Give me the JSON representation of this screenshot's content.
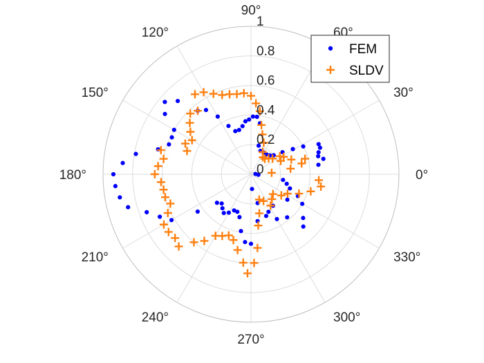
{
  "chart_data": {
    "type": "scatter",
    "subtype": "polar",
    "title": "",
    "rlim": [
      0,
      1
    ],
    "r_ticks": [
      "0",
      "0.2",
      "0.4",
      "0.6",
      "0.8",
      "1"
    ],
    "theta_ticks": [
      "0°",
      "30°",
      "60°",
      "90°",
      "120°",
      "150°",
      "180°",
      "210°",
      "240°",
      "270°",
      "300°",
      "330°"
    ],
    "grid": true,
    "legend_position": "top-right",
    "series": [
      {
        "name": "FEM",
        "marker": "dot",
        "color": "#0000ff",
        "points": [
          {
            "theta": 4,
            "r": 0.03
          },
          {
            "theta": 8,
            "r": 0.46
          },
          {
            "theta": 12,
            "r": 0.5
          },
          {
            "theta": 15,
            "r": 0.47
          },
          {
            "theta": 18,
            "r": 0.48
          },
          {
            "theta": 21,
            "r": 0.5
          },
          {
            "theta": 24,
            "r": 0.5
          },
          {
            "theta": 28,
            "r": 0.4
          },
          {
            "theta": 31,
            "r": 0.33
          },
          {
            "theta": 35,
            "r": 0.26
          },
          {
            "theta": 40,
            "r": 0.2
          },
          {
            "theta": 45,
            "r": 0.18
          },
          {
            "theta": 52,
            "r": 0.17
          },
          {
            "theta": 60,
            "r": 0.17
          },
          {
            "theta": 68,
            "r": 0.17
          },
          {
            "theta": 75,
            "r": 0.2
          },
          {
            "theta": 80,
            "r": 0.35
          },
          {
            "theta": 84,
            "r": 0.39
          },
          {
            "theta": 88,
            "r": 0.39
          },
          {
            "theta": 92,
            "r": 0.37
          },
          {
            "theta": 96,
            "r": 0.36
          },
          {
            "theta": 100,
            "r": 0.33
          },
          {
            "theta": 105,
            "r": 0.31
          },
          {
            "theta": 110,
            "r": 0.31
          },
          {
            "theta": 115,
            "r": 0.36
          },
          {
            "theta": 120,
            "r": 0.45
          },
          {
            "theta": 125,
            "r": 0.53
          },
          {
            "theta": 130,
            "r": 0.56
          },
          {
            "theta": 135,
            "r": 0.7
          },
          {
            "theta": 140,
            "r": 0.76
          },
          {
            "theta": 145,
            "r": 0.71
          },
          {
            "theta": 150,
            "r": 0.6
          },
          {
            "theta": 155,
            "r": 0.59
          },
          {
            "theta": 160,
            "r": 0.59
          },
          {
            "theta": 165,
            "r": 0.65
          },
          {
            "theta": 170,
            "r": 0.79
          },
          {
            "theta": 175,
            "r": 0.87
          },
          {
            "theta": 180,
            "r": 0.93
          },
          {
            "theta": 185,
            "r": 0.92
          },
          {
            "theta": 190,
            "r": 0.9
          },
          {
            "theta": 195,
            "r": 0.86
          },
          {
            "theta": 200,
            "r": 0.75
          },
          {
            "theta": 205,
            "r": 0.68
          },
          {
            "theta": 210,
            "r": 0.62
          },
          {
            "theta": 215,
            "r": 0.44
          },
          {
            "theta": 220,
            "r": 0.3
          },
          {
            "theta": 225,
            "r": 0.28
          },
          {
            "theta": 230,
            "r": 0.3
          },
          {
            "theta": 235,
            "r": 0.32
          },
          {
            "theta": 240,
            "r": 0.3
          },
          {
            "theta": 245,
            "r": 0.27
          },
          {
            "theta": 250,
            "r": 0.27
          },
          {
            "theta": 255,
            "r": 0.3
          },
          {
            "theta": 260,
            "r": 0.39
          },
          {
            "theta": 265,
            "r": 0.46
          },
          {
            "theta": 270,
            "r": 0.47
          },
          {
            "theta": 274,
            "r": 0.1
          },
          {
            "theta": 278,
            "r": 0.32
          },
          {
            "theta": 283,
            "r": 0.2
          },
          {
            "theta": 290,
            "r": 0.3
          },
          {
            "theta": 295,
            "r": 0.28
          },
          {
            "theta": 300,
            "r": 0.35
          },
          {
            "theta": 305,
            "r": 0.26
          },
          {
            "theta": 310,
            "r": 0.38
          },
          {
            "theta": 315,
            "r": 0.5
          },
          {
            "theta": 320,
            "r": 0.46
          },
          {
            "theta": 325,
            "r": 0.3
          },
          {
            "theta": 330,
            "r": 0.4
          },
          {
            "theta": 335,
            "r": 0.35
          },
          {
            "theta": 340,
            "r": 0.28
          },
          {
            "theta": 345,
            "r": 0.25
          },
          {
            "theta": 350,
            "r": 0.22
          },
          {
            "theta": 356,
            "r": 0.05
          }
        ]
      },
      {
        "name": "SLDV",
        "marker": "plus",
        "color": "#ff7f0e",
        "points": [
          {
            "theta": 4,
            "r": 0.14
          },
          {
            "theta": 8,
            "r": 0.27
          },
          {
            "theta": 12,
            "r": 0.35
          },
          {
            "theta": 16,
            "r": 0.38
          },
          {
            "theta": 20,
            "r": 0.29
          },
          {
            "theta": 24,
            "r": 0.22
          },
          {
            "theta": 28,
            "r": 0.25
          },
          {
            "theta": 32,
            "r": 0.23
          },
          {
            "theta": 36,
            "r": 0.18
          },
          {
            "theta": 42,
            "r": 0.16
          },
          {
            "theta": 48,
            "r": 0.14
          },
          {
            "theta": 55,
            "r": 0.14
          },
          {
            "theta": 62,
            "r": 0.17
          },
          {
            "theta": 68,
            "r": 0.23
          },
          {
            "theta": 74,
            "r": 0.28
          },
          {
            "theta": 78,
            "r": 0.34
          },
          {
            "theta": 82,
            "r": 0.43
          },
          {
            "theta": 86,
            "r": 0.48
          },
          {
            "theta": 90,
            "r": 0.53
          },
          {
            "theta": 95,
            "r": 0.55
          },
          {
            "theta": 100,
            "r": 0.55
          },
          {
            "theta": 105,
            "r": 0.56
          },
          {
            "theta": 110,
            "r": 0.57
          },
          {
            "theta": 115,
            "r": 0.6
          },
          {
            "theta": 120,
            "r": 0.64
          },
          {
            "theta": 125,
            "r": 0.66
          },
          {
            "theta": 130,
            "r": 0.56
          },
          {
            "theta": 135,
            "r": 0.58
          },
          {
            "theta": 140,
            "r": 0.54
          },
          {
            "theta": 145,
            "r": 0.5
          },
          {
            "theta": 150,
            "r": 0.46
          },
          {
            "theta": 155,
            "r": 0.49
          },
          {
            "theta": 160,
            "r": 0.46
          },
          {
            "theta": 165,
            "r": 0.63
          },
          {
            "theta": 170,
            "r": 0.6
          },
          {
            "theta": 175,
            "r": 0.63
          },
          {
            "theta": 180,
            "r": 0.65
          },
          {
            "theta": 185,
            "r": 0.61
          },
          {
            "theta": 190,
            "r": 0.6
          },
          {
            "theta": 195,
            "r": 0.6
          },
          {
            "theta": 200,
            "r": 0.58
          },
          {
            "theta": 205,
            "r": 0.62
          },
          {
            "theta": 210,
            "r": 0.68
          },
          {
            "theta": 215,
            "r": 0.68
          },
          {
            "theta": 220,
            "r": 0.67
          },
          {
            "theta": 225,
            "r": 0.69
          },
          {
            "theta": 230,
            "r": 0.6
          },
          {
            "theta": 235,
            "r": 0.55
          },
          {
            "theta": 240,
            "r": 0.48
          },
          {
            "theta": 245,
            "r": 0.46
          },
          {
            "theta": 250,
            "r": 0.44
          },
          {
            "theta": 255,
            "r": 0.46
          },
          {
            "theta": 260,
            "r": 0.52
          },
          {
            "theta": 265,
            "r": 0.6
          },
          {
            "theta": 268,
            "r": 0.67
          },
          {
            "theta": 272,
            "r": 0.6
          },
          {
            "theta": 275,
            "r": 0.5
          },
          {
            "theta": 278,
            "r": 0.35
          },
          {
            "theta": 282,
            "r": 0.27
          },
          {
            "theta": 288,
            "r": 0.18
          },
          {
            "theta": 295,
            "r": 0.2
          },
          {
            "theta": 302,
            "r": 0.25
          },
          {
            "theta": 310,
            "r": 0.22
          },
          {
            "theta": 318,
            "r": 0.2
          },
          {
            "theta": 325,
            "r": 0.25
          },
          {
            "theta": 332,
            "r": 0.28
          },
          {
            "theta": 338,
            "r": 0.35
          },
          {
            "theta": 344,
            "r": 0.42
          },
          {
            "theta": 350,
            "r": 0.48
          },
          {
            "theta": 355,
            "r": 0.46
          }
        ]
      }
    ]
  }
}
